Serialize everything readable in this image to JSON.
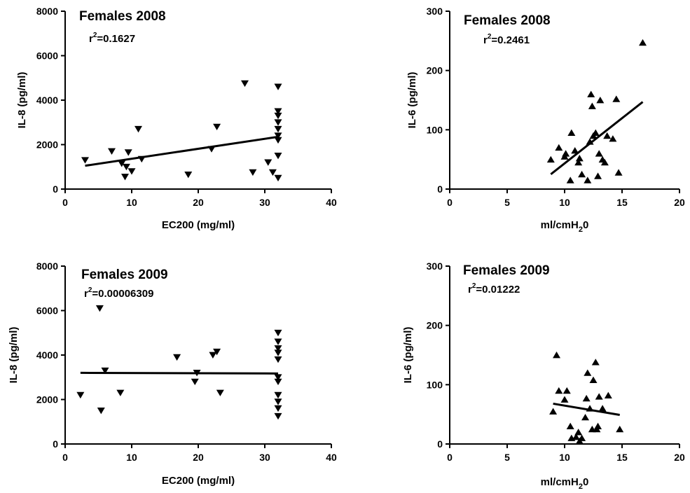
{
  "chart_data": [
    {
      "type": "scatter",
      "title": "Females 2008",
      "annotation": {
        "prefix": "r",
        "sup": "2",
        "value": "=0.1627"
      },
      "xlabel": "EC200 (mg/ml)",
      "ylabel": "IL-8 (pg/ml)",
      "xlim": [
        0,
        40
      ],
      "ylim": [
        0,
        8000
      ],
      "xticks": [
        0,
        10,
        20,
        30,
        40
      ],
      "yticks": [
        0,
        2000,
        4000,
        6000,
        8000
      ],
      "marker": "triangle-down",
      "points": [
        [
          3,
          1300
        ],
        [
          7,
          1700
        ],
        [
          8.5,
          1150
        ],
        [
          9,
          550
        ],
        [
          9.2,
          1000
        ],
        [
          9.5,
          1650
        ],
        [
          10,
          800
        ],
        [
          11,
          2700
        ],
        [
          11.5,
          1350
        ],
        [
          18.5,
          650
        ],
        [
          22,
          1800
        ],
        [
          22.8,
          2800
        ],
        [
          27,
          4750
        ],
        [
          28.2,
          750
        ],
        [
          30.5,
          1200
        ],
        [
          31.2,
          750
        ],
        [
          32,
          500
        ],
        [
          32,
          1500
        ],
        [
          32,
          2200
        ],
        [
          32,
          2400
        ],
        [
          32,
          2700
        ],
        [
          32,
          3000
        ],
        [
          32,
          3300
        ],
        [
          32,
          3500
        ],
        [
          32,
          4600
        ]
      ],
      "fit": [
        [
          3,
          1050
        ],
        [
          32,
          2350
        ]
      ]
    },
    {
      "type": "scatter",
      "title": "Females 2008",
      "annotation": {
        "prefix": "r",
        "sup": "2",
        "value": "=0.2461"
      },
      "xlabel": "ml/cmH20",
      "ylabel": "IL-6 (pg/ml)",
      "xlim": [
        0,
        20
      ],
      "ylim": [
        0,
        300
      ],
      "xticks": [
        0,
        5,
        10,
        15,
        20
      ],
      "yticks": [
        0,
        100,
        200,
        300
      ],
      "marker": "triangle-up",
      "points": [
        [
          8.8,
          50
        ],
        [
          9.5,
          70
        ],
        [
          10,
          55
        ],
        [
          10.1,
          60
        ],
        [
          10.5,
          15
        ],
        [
          10.6,
          95
        ],
        [
          10.9,
          65
        ],
        [
          11.2,
          45
        ],
        [
          11.3,
          52
        ],
        [
          11.5,
          25
        ],
        [
          12,
          15
        ],
        [
          12.2,
          80
        ],
        [
          12.3,
          160
        ],
        [
          12.4,
          140
        ],
        [
          12.5,
          90
        ],
        [
          12.7,
          95
        ],
        [
          12.9,
          22
        ],
        [
          13,
          60
        ],
        [
          13.1,
          150
        ],
        [
          13.3,
          50
        ],
        [
          13.5,
          45
        ],
        [
          13.7,
          90
        ],
        [
          14.2,
          85
        ],
        [
          14.5,
          152
        ],
        [
          14.7,
          28
        ],
        [
          16.8,
          247
        ]
      ],
      "fit": [
        [
          8.8,
          25
        ],
        [
          16.8,
          147
        ]
      ]
    },
    {
      "type": "scatter",
      "title": "Females 2009",
      "annotation": {
        "prefix": "r",
        "sup": "2",
        "value": "=0.00006309"
      },
      "xlabel": "EC200 (mg/ml)",
      "ylabel": "IL-8 (pg/ml)",
      "xlim": [
        0,
        40
      ],
      "ylim": [
        0,
        8000
      ],
      "xticks": [
        0,
        10,
        20,
        30,
        40
      ],
      "yticks": [
        0,
        2000,
        4000,
        6000,
        8000
      ],
      "marker": "triangle-down",
      "points": [
        [
          2.3,
          2200
        ],
        [
          5.2,
          6100
        ],
        [
          5.4,
          1500
        ],
        [
          6,
          3300
        ],
        [
          8.3,
          2300
        ],
        [
          16.8,
          3900
        ],
        [
          19.5,
          2800
        ],
        [
          19.8,
          3200
        ],
        [
          22.2,
          4000
        ],
        [
          22.8,
          4150
        ],
        [
          23.3,
          2300
        ],
        [
          32,
          1250
        ],
        [
          32,
          1600
        ],
        [
          32,
          1900
        ],
        [
          32,
          2200
        ],
        [
          32,
          2800
        ],
        [
          32,
          3000
        ],
        [
          32,
          3800
        ],
        [
          32,
          4100
        ],
        [
          32,
          4300
        ],
        [
          32,
          4600
        ],
        [
          32,
          5000
        ]
      ],
      "fit": [
        [
          2.3,
          3200
        ],
        [
          32,
          3170
        ]
      ]
    },
    {
      "type": "scatter",
      "title": "Females 2009",
      "annotation": {
        "prefix": "r",
        "sup": "2",
        "value": "=0.01222"
      },
      "xlabel": "ml/cmH20",
      "ylabel": "IL-6 (pg/ml)",
      "xlim": [
        0,
        20
      ],
      "ylim": [
        0,
        300
      ],
      "xticks": [
        0,
        5,
        10,
        15,
        20
      ],
      "yticks": [
        0,
        100,
        200,
        300
      ],
      "marker": "triangle-up",
      "points": [
        [
          9,
          55
        ],
        [
          9.3,
          150
        ],
        [
          9.5,
          90
        ],
        [
          10,
          75
        ],
        [
          10.2,
          90
        ],
        [
          10.5,
          30
        ],
        [
          10.6,
          10
        ],
        [
          11,
          12
        ],
        [
          11.2,
          20
        ],
        [
          11.3,
          5
        ],
        [
          11.5,
          10
        ],
        [
          11.8,
          45
        ],
        [
          11.9,
          77
        ],
        [
          12,
          120
        ],
        [
          12.2,
          60
        ],
        [
          12.4,
          25
        ],
        [
          12.5,
          108
        ],
        [
          12.7,
          138
        ],
        [
          12.8,
          25
        ],
        [
          12.9,
          30
        ],
        [
          13,
          80
        ],
        [
          13.3,
          60
        ],
        [
          13.8,
          82
        ],
        [
          14.8,
          25
        ]
      ],
      "fit": [
        [
          9,
          68
        ],
        [
          14.8,
          49
        ]
      ]
    }
  ]
}
